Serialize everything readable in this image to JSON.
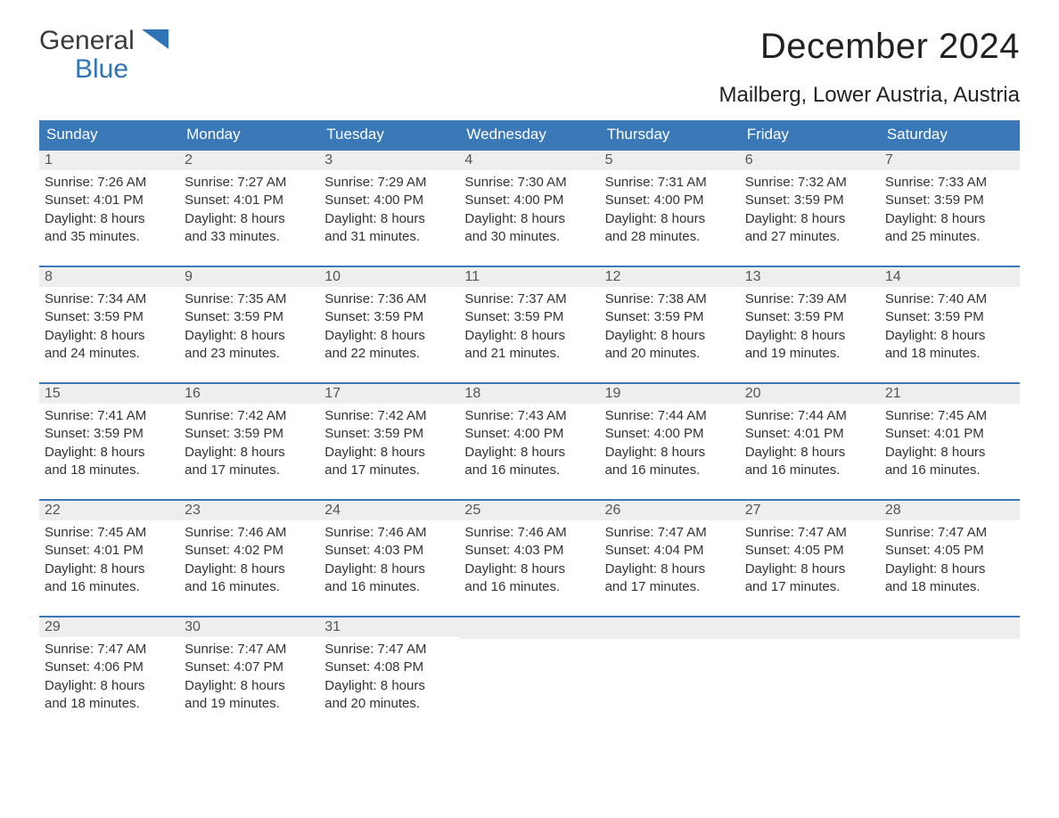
{
  "logo": {
    "word1": "General",
    "word2": "Blue",
    "shape_color": "#2f75b5"
  },
  "title": "December 2024",
  "location": "Mailberg, Lower Austria, Austria",
  "colors": {
    "header_bg": "#3b78b8",
    "header_text": "#ffffff",
    "week_divider": "#3b78b8",
    "daynum_bg": "#eeeeee",
    "body_text": "#333333"
  },
  "weekdays": [
    "Sunday",
    "Monday",
    "Tuesday",
    "Wednesday",
    "Thursday",
    "Friday",
    "Saturday"
  ],
  "weeks": [
    [
      {
        "n": "1",
        "sr": "Sunrise: 7:26 AM",
        "ss": "Sunset: 4:01 PM",
        "d1": "Daylight: 8 hours",
        "d2": "and 35 minutes."
      },
      {
        "n": "2",
        "sr": "Sunrise: 7:27 AM",
        "ss": "Sunset: 4:01 PM",
        "d1": "Daylight: 8 hours",
        "d2": "and 33 minutes."
      },
      {
        "n": "3",
        "sr": "Sunrise: 7:29 AM",
        "ss": "Sunset: 4:00 PM",
        "d1": "Daylight: 8 hours",
        "d2": "and 31 minutes."
      },
      {
        "n": "4",
        "sr": "Sunrise: 7:30 AM",
        "ss": "Sunset: 4:00 PM",
        "d1": "Daylight: 8 hours",
        "d2": "and 30 minutes."
      },
      {
        "n": "5",
        "sr": "Sunrise: 7:31 AM",
        "ss": "Sunset: 4:00 PM",
        "d1": "Daylight: 8 hours",
        "d2": "and 28 minutes."
      },
      {
        "n": "6",
        "sr": "Sunrise: 7:32 AM",
        "ss": "Sunset: 3:59 PM",
        "d1": "Daylight: 8 hours",
        "d2": "and 27 minutes."
      },
      {
        "n": "7",
        "sr": "Sunrise: 7:33 AM",
        "ss": "Sunset: 3:59 PM",
        "d1": "Daylight: 8 hours",
        "d2": "and 25 minutes."
      }
    ],
    [
      {
        "n": "8",
        "sr": "Sunrise: 7:34 AM",
        "ss": "Sunset: 3:59 PM",
        "d1": "Daylight: 8 hours",
        "d2": "and 24 minutes."
      },
      {
        "n": "9",
        "sr": "Sunrise: 7:35 AM",
        "ss": "Sunset: 3:59 PM",
        "d1": "Daylight: 8 hours",
        "d2": "and 23 minutes."
      },
      {
        "n": "10",
        "sr": "Sunrise: 7:36 AM",
        "ss": "Sunset: 3:59 PM",
        "d1": "Daylight: 8 hours",
        "d2": "and 22 minutes."
      },
      {
        "n": "11",
        "sr": "Sunrise: 7:37 AM",
        "ss": "Sunset: 3:59 PM",
        "d1": "Daylight: 8 hours",
        "d2": "and 21 minutes."
      },
      {
        "n": "12",
        "sr": "Sunrise: 7:38 AM",
        "ss": "Sunset: 3:59 PM",
        "d1": "Daylight: 8 hours",
        "d2": "and 20 minutes."
      },
      {
        "n": "13",
        "sr": "Sunrise: 7:39 AM",
        "ss": "Sunset: 3:59 PM",
        "d1": "Daylight: 8 hours",
        "d2": "and 19 minutes."
      },
      {
        "n": "14",
        "sr": "Sunrise: 7:40 AM",
        "ss": "Sunset: 3:59 PM",
        "d1": "Daylight: 8 hours",
        "d2": "and 18 minutes."
      }
    ],
    [
      {
        "n": "15",
        "sr": "Sunrise: 7:41 AM",
        "ss": "Sunset: 3:59 PM",
        "d1": "Daylight: 8 hours",
        "d2": "and 18 minutes."
      },
      {
        "n": "16",
        "sr": "Sunrise: 7:42 AM",
        "ss": "Sunset: 3:59 PM",
        "d1": "Daylight: 8 hours",
        "d2": "and 17 minutes."
      },
      {
        "n": "17",
        "sr": "Sunrise: 7:42 AM",
        "ss": "Sunset: 3:59 PM",
        "d1": "Daylight: 8 hours",
        "d2": "and 17 minutes."
      },
      {
        "n": "18",
        "sr": "Sunrise: 7:43 AM",
        "ss": "Sunset: 4:00 PM",
        "d1": "Daylight: 8 hours",
        "d2": "and 16 minutes."
      },
      {
        "n": "19",
        "sr": "Sunrise: 7:44 AM",
        "ss": "Sunset: 4:00 PM",
        "d1": "Daylight: 8 hours",
        "d2": "and 16 minutes."
      },
      {
        "n": "20",
        "sr": "Sunrise: 7:44 AM",
        "ss": "Sunset: 4:01 PM",
        "d1": "Daylight: 8 hours",
        "d2": "and 16 minutes."
      },
      {
        "n": "21",
        "sr": "Sunrise: 7:45 AM",
        "ss": "Sunset: 4:01 PM",
        "d1": "Daylight: 8 hours",
        "d2": "and 16 minutes."
      }
    ],
    [
      {
        "n": "22",
        "sr": "Sunrise: 7:45 AM",
        "ss": "Sunset: 4:01 PM",
        "d1": "Daylight: 8 hours",
        "d2": "and 16 minutes."
      },
      {
        "n": "23",
        "sr": "Sunrise: 7:46 AM",
        "ss": "Sunset: 4:02 PM",
        "d1": "Daylight: 8 hours",
        "d2": "and 16 minutes."
      },
      {
        "n": "24",
        "sr": "Sunrise: 7:46 AM",
        "ss": "Sunset: 4:03 PM",
        "d1": "Daylight: 8 hours",
        "d2": "and 16 minutes."
      },
      {
        "n": "25",
        "sr": "Sunrise: 7:46 AM",
        "ss": "Sunset: 4:03 PM",
        "d1": "Daylight: 8 hours",
        "d2": "and 16 minutes."
      },
      {
        "n": "26",
        "sr": "Sunrise: 7:47 AM",
        "ss": "Sunset: 4:04 PM",
        "d1": "Daylight: 8 hours",
        "d2": "and 17 minutes."
      },
      {
        "n": "27",
        "sr": "Sunrise: 7:47 AM",
        "ss": "Sunset: 4:05 PM",
        "d1": "Daylight: 8 hours",
        "d2": "and 17 minutes."
      },
      {
        "n": "28",
        "sr": "Sunrise: 7:47 AM",
        "ss": "Sunset: 4:05 PM",
        "d1": "Daylight: 8 hours",
        "d2": "and 18 minutes."
      }
    ],
    [
      {
        "n": "29",
        "sr": "Sunrise: 7:47 AM",
        "ss": "Sunset: 4:06 PM",
        "d1": "Daylight: 8 hours",
        "d2": "and 18 minutes."
      },
      {
        "n": "30",
        "sr": "Sunrise: 7:47 AM",
        "ss": "Sunset: 4:07 PM",
        "d1": "Daylight: 8 hours",
        "d2": "and 19 minutes."
      },
      {
        "n": "31",
        "sr": "Sunrise: 7:47 AM",
        "ss": "Sunset: 4:08 PM",
        "d1": "Daylight: 8 hours",
        "d2": "and 20 minutes."
      },
      {
        "empty": true
      },
      {
        "empty": true
      },
      {
        "empty": true
      },
      {
        "empty": true
      }
    ]
  ]
}
